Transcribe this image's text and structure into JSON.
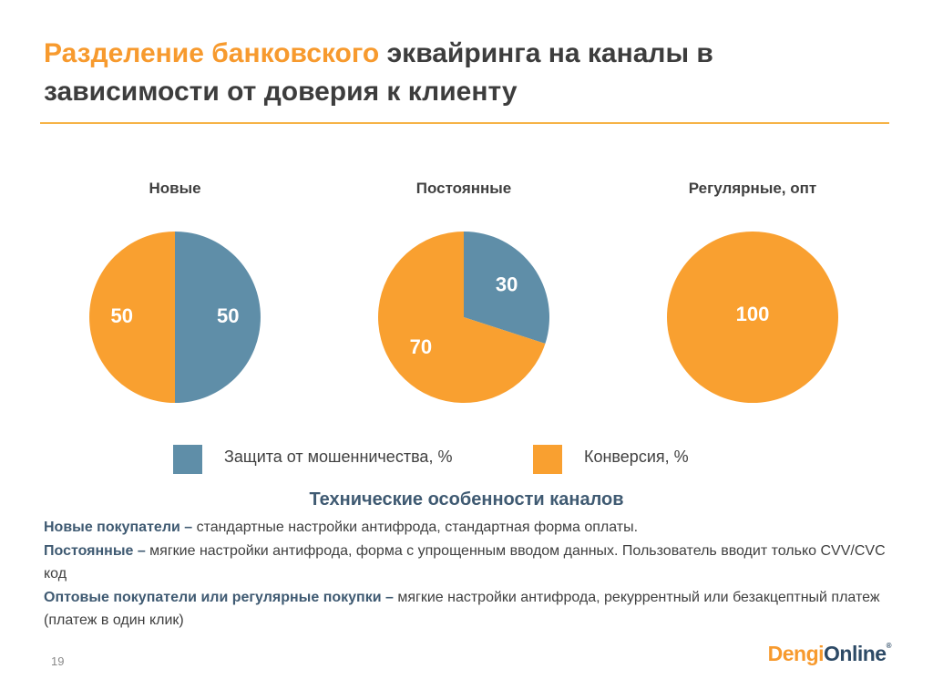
{
  "slide": {
    "title_accent": "Разделение банковского",
    "title_rest": "эквайринга на каналы в зависимости от доверия к клиенту",
    "page_number": "19"
  },
  "chart_data": [
    {
      "type": "pie",
      "title": "Новые",
      "slices": [
        {
          "series": "Защита от мошенничества, %",
          "value": 50
        },
        {
          "series": "Конверсия, %",
          "value": 50
        }
      ]
    },
    {
      "type": "pie",
      "title": "Постоянные",
      "slices": [
        {
          "series": "Защита от мошенничества, %",
          "value": 30
        },
        {
          "series": "Конверсия, %",
          "value": 70
        }
      ]
    },
    {
      "type": "pie",
      "title": "Регулярные, опт",
      "slices": [
        {
          "series": "Защита от мошенничества, %",
          "value": 0
        },
        {
          "series": "Конверсия, %",
          "value": 100
        }
      ]
    }
  ],
  "legend": [
    {
      "label": "Защита от мошенничества, %",
      "color": "#5f8ea8"
    },
    {
      "label": "Конверсия, %",
      "color": "#f9a030"
    }
  ],
  "section": {
    "heading": "Технические особенности каналов",
    "items": [
      {
        "bold": "Новые покупатели –",
        "text": " стандартные настройки антифрода, стандартная форма оплаты."
      },
      {
        "bold": "Постоянные –",
        "text": " мягкие настройки антифрода, форма с упрощенным вводом данных. Пользователь вводит только CVV/CVC код"
      },
      {
        "bold": "Оптовые покупатели или регулярные покупки –",
        "text": " мягкие настройки антифрода, рекуррентный или безакцептный платеж (платеж в один клик)"
      }
    ]
  },
  "logo": {
    "part1": "Dengi",
    "part2": "Online"
  }
}
